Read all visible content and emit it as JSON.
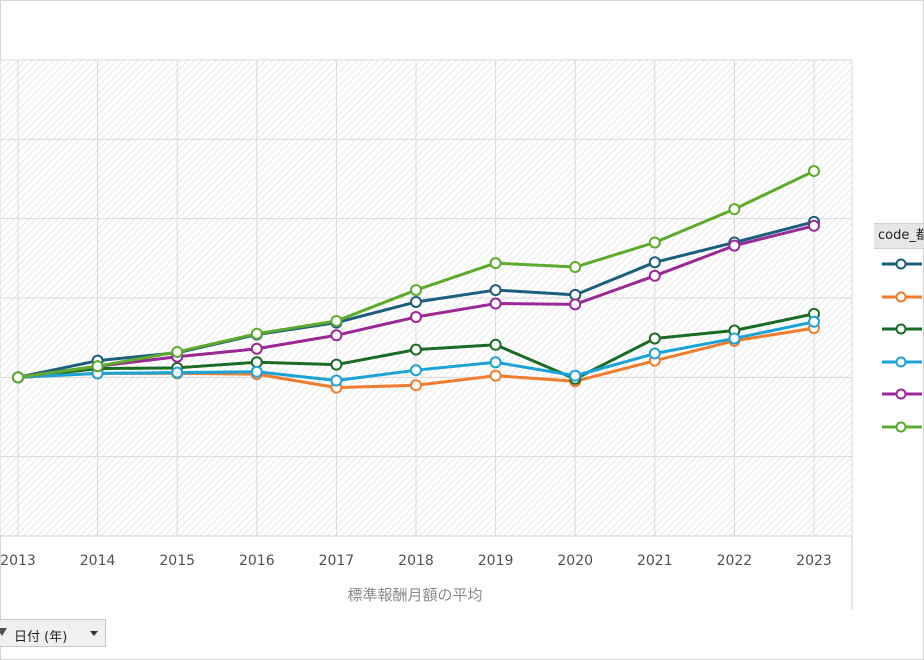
{
  "chart_data": {
    "type": "line",
    "x": [
      "2013",
      "2014",
      "2015",
      "2016",
      "2017",
      "2018",
      "2019",
      "2020",
      "2021",
      "2022",
      "2023"
    ],
    "xlabel": "標準報酬月額の平均",
    "ylim": [
      -4,
      8
    ],
    "y_gridlines": [
      -4,
      -2,
      0,
      2,
      4,
      6,
      8
    ],
    "grid": true,
    "background": "hatched",
    "legend": {
      "title": "code_都",
      "placement": "right"
    },
    "series": [
      {
        "color": "#1b5e7e",
        "values": [
          0,
          0.42,
          0.62,
          1.08,
          1.38,
          1.9,
          2.2,
          2.08,
          2.9,
          3.4,
          3.92
        ]
      },
      {
        "color": "#f07c2e",
        "values": [
          0,
          0.1,
          0.1,
          0.08,
          -0.26,
          -0.2,
          0.04,
          -0.1,
          0.42,
          0.92,
          1.24
        ]
      },
      {
        "color": "#1a6b24",
        "values": [
          0,
          0.22,
          0.24,
          0.38,
          0.32,
          0.7,
          0.82,
          -0.04,
          0.98,
          1.18,
          1.6
        ]
      },
      {
        "color": "#1ba3d8",
        "values": [
          0,
          0.1,
          0.12,
          0.14,
          -0.08,
          0.18,
          0.38,
          0.04,
          0.6,
          0.98,
          1.4
        ]
      },
      {
        "color": "#9a2896",
        "values": [
          0,
          0.28,
          0.52,
          0.72,
          1.06,
          1.52,
          1.86,
          1.84,
          2.56,
          3.32,
          3.82
        ]
      },
      {
        "color": "#5cab2c",
        "values": [
          0,
          0.28,
          0.64,
          1.1,
          1.42,
          2.2,
          2.88,
          2.78,
          3.4,
          4.24,
          5.2
        ]
      }
    ]
  },
  "toolbar": {
    "date_field_label": "日付 (年)"
  }
}
